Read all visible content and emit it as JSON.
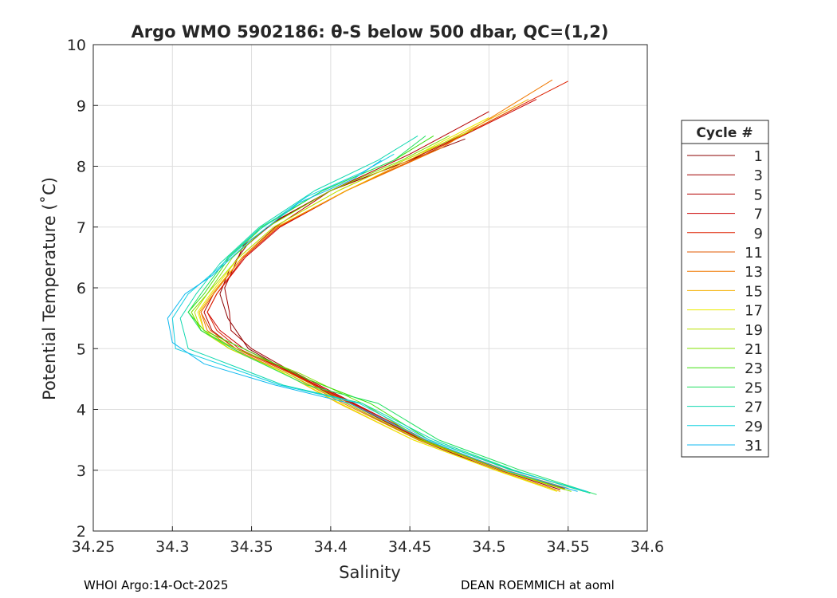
{
  "chart_data": {
    "type": "line",
    "title": "Argo WMO 5902186: θ-S below 500 dbar,  QC=(1,2)",
    "xlabel": "Salinity",
    "ylabel": "Potential Temperature (˚C)",
    "xlim": [
      34.25,
      34.6
    ],
    "ylim": [
      2,
      10
    ],
    "xticks": [
      "34.25",
      "34.3",
      "34.35",
      "34.4",
      "34.45",
      "34.5",
      "34.55",
      "34.6"
    ],
    "yticks": [
      "2",
      "3",
      "4",
      "5",
      "6",
      "7",
      "8",
      "9",
      "10"
    ],
    "xtick_values": [
      34.25,
      34.3,
      34.35,
      34.4,
      34.45,
      34.5,
      34.55,
      34.6
    ],
    "ytick_values": [
      2,
      3,
      4,
      5,
      6,
      7,
      8,
      9,
      10
    ],
    "grid": true,
    "legend": {
      "title": "Cycle #",
      "placement": "outside-right"
    },
    "series": [
      {
        "name": "1",
        "color": "#8b0000",
        "x": [
          34.542,
          34.505,
          34.455,
          34.41,
          34.375,
          34.348,
          34.335,
          34.33,
          34.336,
          34.347,
          34.365,
          34.4,
          34.44,
          34.485
        ],
        "y": [
          2.68,
          3.0,
          3.5,
          4.1,
          4.6,
          5.0,
          5.5,
          5.9,
          6.3,
          6.7,
          7.1,
          7.6,
          8.0,
          8.45
        ]
      },
      {
        "name": "3",
        "color": "#a00000",
        "x": [
          34.545,
          34.507,
          34.457,
          34.412,
          34.377,
          34.35,
          34.337,
          34.336,
          34.333,
          34.345,
          34.366,
          34.4,
          34.45,
          34.49
        ],
        "y": [
          2.68,
          3.0,
          3.5,
          4.1,
          4.6,
          5.0,
          5.3,
          5.6,
          6.0,
          6.7,
          7.1,
          7.6,
          8.1,
          8.6
        ]
      },
      {
        "name": "5",
        "color": "#b40000",
        "x": [
          34.546,
          34.508,
          34.46,
          34.415,
          34.378,
          34.34,
          34.325,
          34.32,
          34.326,
          34.344,
          34.365,
          34.4,
          34.45,
          34.5
        ],
        "y": [
          2.7,
          3.0,
          3.5,
          4.1,
          4.6,
          5.0,
          5.3,
          5.6,
          5.9,
          6.5,
          7.0,
          7.6,
          8.2,
          8.9
        ]
      },
      {
        "name": "7",
        "color": "#cc0000",
        "x": [
          34.547,
          34.509,
          34.458,
          34.414,
          34.376,
          34.345,
          34.33,
          34.322,
          34.328,
          34.346,
          34.368,
          34.41,
          34.46,
          34.53
        ],
        "y": [
          2.7,
          3.0,
          3.5,
          4.1,
          4.6,
          5.0,
          5.3,
          5.6,
          5.9,
          6.5,
          7.0,
          7.6,
          8.2,
          9.1
        ]
      },
      {
        "name": "9",
        "color": "#dd2000",
        "x": [
          34.548,
          34.51,
          34.458,
          34.413,
          34.375,
          34.342,
          34.328,
          34.322,
          34.328,
          34.345,
          34.367,
          34.41,
          34.46,
          34.55
        ],
        "y": [
          2.7,
          3.0,
          3.5,
          4.1,
          4.6,
          5.0,
          5.3,
          5.6,
          5.9,
          6.5,
          7.0,
          7.6,
          8.2,
          9.4
        ]
      },
      {
        "name": "11",
        "color": "#e05800",
        "x": [
          34.55,
          34.511,
          34.459,
          34.412,
          34.374,
          34.34,
          34.324,
          34.318,
          34.326,
          34.344,
          34.366,
          34.41,
          34.46,
          34.52
        ],
        "y": [
          2.7,
          3.0,
          3.5,
          4.1,
          4.6,
          5.0,
          5.3,
          5.6,
          5.9,
          6.5,
          7.0,
          7.6,
          8.2,
          9.0
        ]
      },
      {
        "name": "13",
        "color": "#f07800",
        "x": [
          34.548,
          34.508,
          34.455,
          34.408,
          34.372,
          34.338,
          34.322,
          34.318,
          34.326,
          34.344,
          34.366,
          34.41,
          34.47,
          34.54
        ],
        "y": [
          2.68,
          3.0,
          3.5,
          4.1,
          4.6,
          5.0,
          5.3,
          5.6,
          5.9,
          6.5,
          7.0,
          7.6,
          8.3,
          9.42
        ]
      },
      {
        "name": "15",
        "color": "#f5b000",
        "x": [
          34.545,
          34.505,
          34.452,
          34.405,
          34.37,
          34.336,
          34.32,
          34.317,
          34.325,
          34.344,
          34.366,
          34.41,
          34.465,
          34.525
        ],
        "y": [
          2.65,
          3.0,
          3.5,
          4.1,
          4.6,
          5.0,
          5.3,
          5.6,
          5.9,
          6.5,
          7.0,
          7.6,
          8.3,
          9.1
        ]
      },
      {
        "name": "17",
        "color": "#ecec00",
        "x": [
          34.543,
          34.504,
          34.452,
          34.406,
          34.37,
          34.336,
          34.32,
          34.316,
          34.324,
          34.342,
          34.364,
          34.405,
          34.455,
          34.5
        ],
        "y": [
          2.65,
          3.0,
          3.5,
          4.1,
          4.6,
          5.0,
          5.3,
          5.6,
          5.9,
          6.5,
          7.0,
          7.6,
          8.2,
          8.8
        ]
      },
      {
        "name": "19",
        "color": "#b8e000",
        "x": [
          34.548,
          34.508,
          34.456,
          34.41,
          34.372,
          34.336,
          34.318,
          34.314,
          34.322,
          34.342,
          34.364,
          34.405,
          34.455,
          34.49
        ],
        "y": [
          2.68,
          3.0,
          3.5,
          4.1,
          4.6,
          5.0,
          5.3,
          5.6,
          5.9,
          6.5,
          7.0,
          7.6,
          8.2,
          8.6
        ]
      },
      {
        "name": "21",
        "color": "#80e000",
        "x": [
          34.552,
          34.51,
          34.458,
          34.42,
          34.38,
          34.34,
          34.318,
          34.312,
          34.322,
          34.338,
          34.36,
          34.4,
          34.445,
          34.475
        ],
        "y": [
          2.65,
          3.0,
          3.5,
          4.1,
          4.6,
          5.0,
          5.3,
          5.6,
          5.9,
          6.5,
          7.0,
          7.6,
          8.1,
          8.5
        ]
      },
      {
        "name": "23",
        "color": "#40e010",
        "x": [
          34.56,
          34.515,
          34.462,
          34.425,
          34.385,
          34.345,
          34.32,
          34.31,
          34.32,
          34.336,
          34.357,
          34.395,
          34.44,
          34.465
        ],
        "y": [
          2.65,
          3.0,
          3.5,
          4.1,
          4.5,
          5.0,
          5.3,
          5.6,
          5.9,
          6.5,
          7.0,
          7.6,
          8.1,
          8.5
        ]
      },
      {
        "name": "25",
        "color": "#20e060",
        "x": [
          34.568,
          34.52,
          34.468,
          34.43,
          34.385,
          34.345,
          34.318,
          34.31,
          34.318,
          34.335,
          34.356,
          34.395,
          34.44,
          34.46
        ],
        "y": [
          2.6,
          3.0,
          3.5,
          4.1,
          4.4,
          4.9,
          5.3,
          5.6,
          5.9,
          6.5,
          7.0,
          7.6,
          8.1,
          8.5
        ]
      },
      {
        "name": "27",
        "color": "#10d8b0",
        "x": [
          34.564,
          34.516,
          34.465,
          34.42,
          34.37,
          34.34,
          34.31,
          34.305,
          34.315,
          34.33,
          34.355,
          34.39,
          34.43,
          34.455
        ],
        "y": [
          2.62,
          3.0,
          3.5,
          4.1,
          4.4,
          4.7,
          5.0,
          5.5,
          5.9,
          6.4,
          7.0,
          7.6,
          8.1,
          8.5
        ]
      },
      {
        "name": "29",
        "color": "#10d0e0",
        "x": [
          34.562,
          34.514,
          34.462,
          34.418,
          34.368,
          34.335,
          34.302,
          34.3,
          34.31,
          34.328,
          34.352,
          34.385,
          34.42,
          34.44
        ],
        "y": [
          2.65,
          3.0,
          3.5,
          4.1,
          4.4,
          4.7,
          5.0,
          5.5,
          5.9,
          6.3,
          6.9,
          7.5,
          7.9,
          8.2
        ]
      },
      {
        "name": "31",
        "color": "#10b8f0",
        "x": [
          34.556,
          34.51,
          34.46,
          34.412,
          34.365,
          34.32,
          34.3,
          34.297,
          34.308,
          34.325,
          34.35,
          34.38,
          34.415,
          34.432
        ],
        "y": [
          2.65,
          3.0,
          3.5,
          4.1,
          4.4,
          4.75,
          5.1,
          5.5,
          5.9,
          6.2,
          6.8,
          7.4,
          7.8,
          8.1
        ]
      }
    ]
  },
  "footer": {
    "left": "WHOI Argo:14-Oct-2025",
    "right": "DEAN ROEMMICH at aoml"
  }
}
